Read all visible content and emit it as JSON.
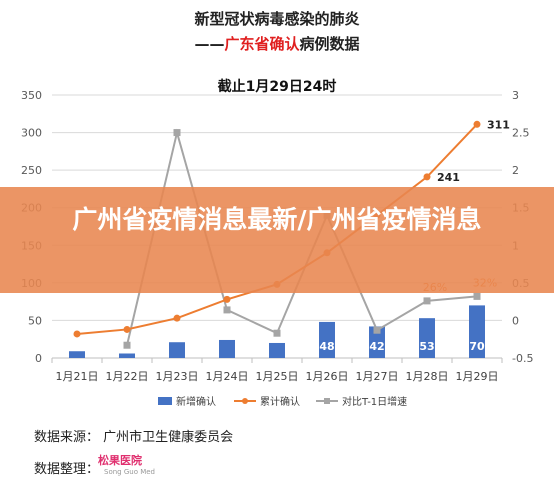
{
  "header": {
    "title": "新型冠状病毒感染的肺炎",
    "subtitle_prefix": "——",
    "subtitle_highlight": "广东省确认",
    "subtitle_suffix": "病例数据",
    "date_line": "截止1月29日24时"
  },
  "banner": {
    "text": "广州省疫情消息最新/广州省疫情消息"
  },
  "footer": {
    "source": "数据来源：  广州市卫生健康委员会",
    "organizer": "数据整理：",
    "logo_text": "松果医院",
    "logo_sub": "Song Guo Med"
  },
  "colors": {
    "bar": "#4472c4",
    "cumulative": "#ed7d31",
    "ratio": "#a5a5a5",
    "grid": "#d9d9d9",
    "highlight": "#e02020",
    "banner": "#e88650"
  },
  "chart_data": {
    "type": "bar",
    "categories": [
      "1月21日",
      "1月22日",
      "1月23日",
      "1月24日",
      "1月25日",
      "1月26日",
      "1月27日",
      "1月28日",
      "1月29日"
    ],
    "ylim": [
      0,
      350
    ],
    "yticks": [
      "0",
      "50",
      "100",
      "150",
      "200",
      "250",
      "300",
      "350"
    ],
    "y2lim": [
      -0.5,
      3
    ],
    "y2ticks": [
      "-0.5",
      "0",
      "0.5",
      "1",
      "1.5",
      "2",
      "2.5",
      "3"
    ],
    "series": [
      {
        "name": "新增确认",
        "kind": "bar",
        "axis": "left",
        "values": [
          9,
          6,
          21,
          24,
          20,
          48,
          42,
          53,
          70
        ],
        "labels": [
          "",
          "",
          "",
          "",
          "",
          "48",
          "42",
          "53",
          "70"
        ]
      },
      {
        "name": "累计确认",
        "kind": "line",
        "axis": "left",
        "values": [
          32,
          38,
          53,
          78,
          98,
          140,
          190,
          241,
          311
        ],
        "labels": [
          "",
          "",
          "",
          "",
          "",
          "",
          "",
          "241",
          "311"
        ]
      },
      {
        "name": "对比T-1日增速",
        "kind": "line",
        "axis": "right",
        "values": [
          null,
          -0.33,
          2.5,
          0.14,
          -0.17,
          1.4,
          -0.13,
          0.26,
          0.32
        ],
        "labels": [
          "",
          "",
          "",
          "",
          "",
          "",
          "",
          "26%",
          "32%"
        ]
      }
    ],
    "legend_position": "bottom"
  }
}
